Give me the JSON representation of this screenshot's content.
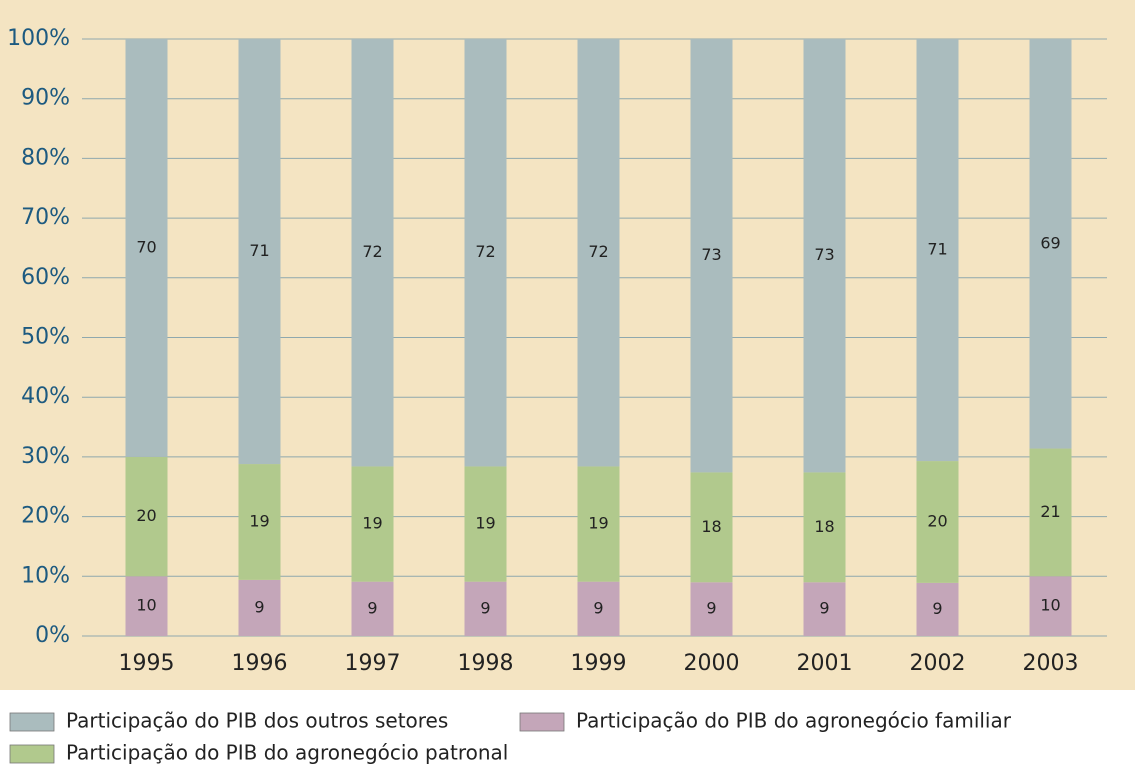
{
  "chart_data": {
    "type": "stacked-bar",
    "categories": [
      "1995",
      "1996",
      "1997",
      "1998",
      "1999",
      "2000",
      "2001",
      "2002",
      "2003"
    ],
    "series": [
      {
        "name": "Participação do PIB do agronegócio familiar",
        "color": "#c4a6b9",
        "values": [
          10,
          9.4,
          9.1,
          9.1,
          9.1,
          9.0,
          9.0,
          8.9,
          10.0
        ],
        "value_labels": [
          "10",
          "9",
          "9",
          "9",
          "9",
          "9",
          "9",
          "9",
          "10"
        ]
      },
      {
        "name": "Participação do PIB do agronegócio patronal",
        "color": "#b1c98d",
        "values": [
          20,
          19.4,
          19.3,
          19.3,
          19.3,
          18.4,
          18.4,
          20.4,
          21.4
        ],
        "value_labels": [
          "20",
          "19",
          "19",
          "19",
          "19",
          "18",
          "18",
          "20",
          "21"
        ]
      },
      {
        "name": "Participação do PIB dos outros setores",
        "color": "#aabcbe",
        "values": [
          70,
          71.2,
          71.6,
          71.6,
          71.6,
          72.6,
          72.6,
          70.7,
          68.6
        ],
        "value_labels": [
          "70",
          "71",
          "72",
          "72",
          "72",
          "73",
          "73",
          "71",
          "69"
        ]
      }
    ],
    "ylim": [
      0,
      100
    ],
    "yticks": [
      {
        "value": 0,
        "label": "0%"
      },
      {
        "value": 10,
        "label": "10%"
      },
      {
        "value": 20,
        "label": "20%"
      },
      {
        "value": 30,
        "label": "30%"
      },
      {
        "value": 40,
        "label": "40%"
      },
      {
        "value": 50,
        "label": "50%"
      },
      {
        "value": 60,
        "label": "60%"
      },
      {
        "value": 70,
        "label": "70%"
      },
      {
        "value": 80,
        "label": "80%"
      },
      {
        "value": 90,
        "label": "90%"
      },
      {
        "value": 100,
        "label": "100%"
      }
    ],
    "grid": true
  }
}
